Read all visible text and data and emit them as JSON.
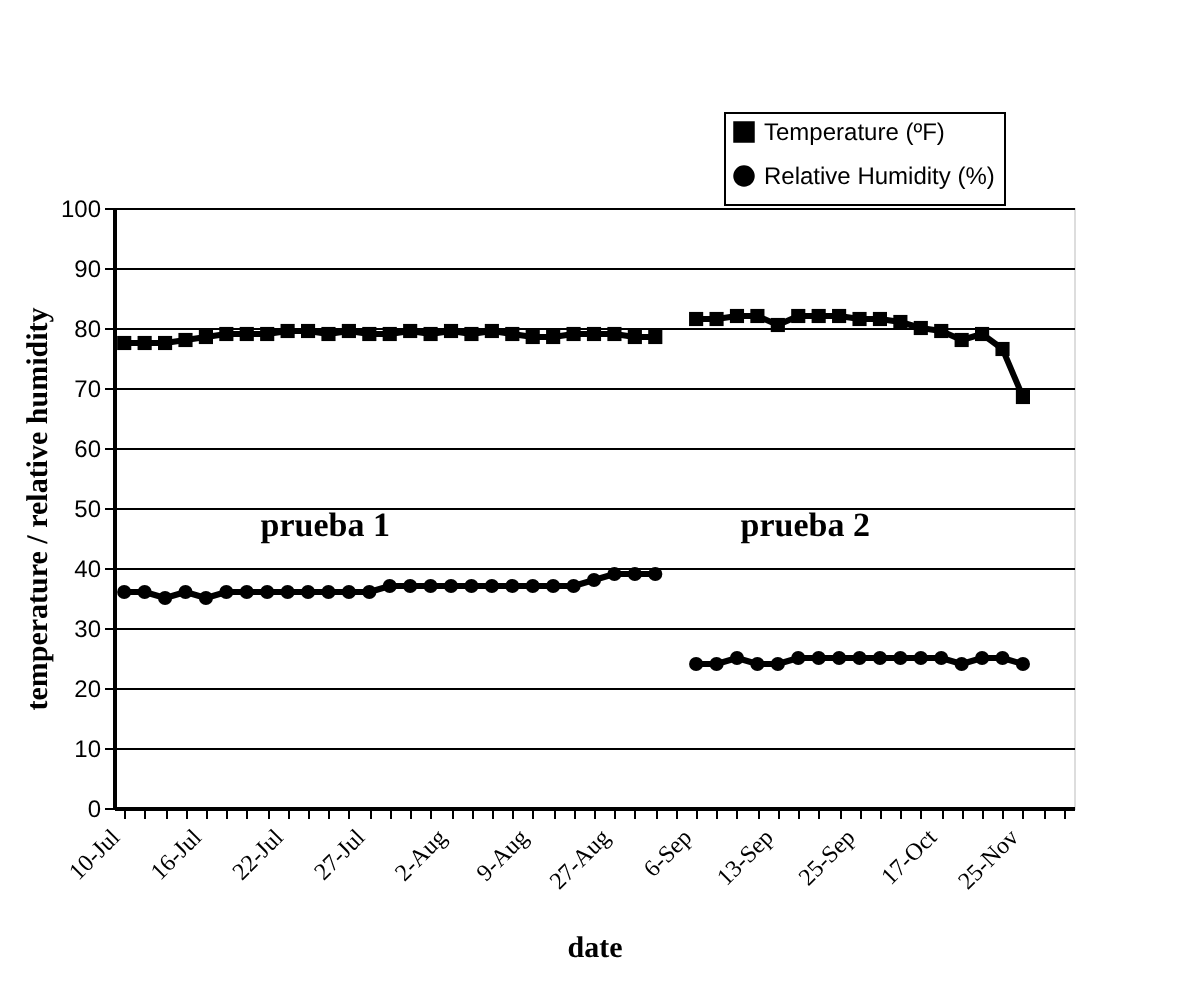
{
  "chart_data": {
    "type": "line",
    "xlabel": "date",
    "ylabel": "temperature / relative humidity",
    "categories": [
      "10-Jul",
      null,
      null,
      null,
      "16-Jul",
      null,
      null,
      null,
      "22-Jul",
      null,
      null,
      null,
      "27-Jul",
      null,
      null,
      null,
      "2-Aug",
      null,
      null,
      null,
      "9-Aug",
      null,
      null,
      null,
      "27-Aug",
      null,
      null,
      null,
      "6-Sep",
      null,
      null,
      null,
      "13-Sep",
      null,
      null,
      null,
      "25-Sep",
      null,
      null,
      null,
      "17-Oct",
      null,
      null,
      null,
      "25-Nov",
      null,
      null
    ],
    "series": [
      {
        "name": "Temperature (ºF)",
        "color": "#000000",
        "marker": "square",
        "values": [
          77.5,
          77.5,
          77.5,
          78,
          78.5,
          79,
          79,
          79,
          79.5,
          79.5,
          79,
          79.5,
          79,
          79,
          79.5,
          79,
          79.5,
          79,
          79.5,
          79,
          78.5,
          78.5,
          79,
          79,
          79,
          78.5,
          78.5,
          null,
          81.5,
          81.5,
          82,
          82,
          80.5,
          82,
          82,
          82,
          81.5,
          81.5,
          81,
          80,
          79.5,
          78,
          79,
          76.5,
          68.5,
          null,
          null
        ]
      },
      {
        "name": "Relative Humidity (%)",
        "color": "#000000",
        "marker": "circle",
        "values": [
          36,
          36,
          35,
          36,
          35,
          36,
          36,
          36,
          36,
          36,
          36,
          36,
          36,
          37,
          37,
          37,
          37,
          37,
          37,
          37,
          37,
          37,
          37,
          38,
          39,
          39,
          39,
          null,
          24,
          24,
          25,
          24,
          24,
          25,
          25,
          25,
          25,
          25,
          25,
          25,
          25,
          24,
          25,
          25,
          24,
          null,
          null
        ]
      }
    ],
    "ylim": [
      0,
      100
    ],
    "yticks": [
      0,
      10,
      20,
      30,
      40,
      50,
      60,
      70,
      80,
      90,
      100
    ],
    "grid": "y",
    "legend": "top right",
    "line_style": "solid",
    "annotations": [
      "prueba 1",
      "prueba 2"
    ]
  }
}
